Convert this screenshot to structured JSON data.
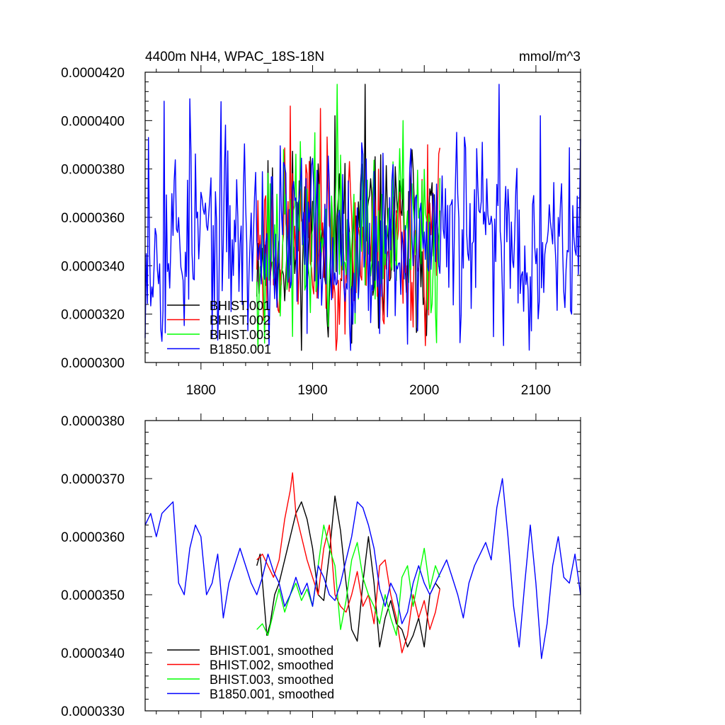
{
  "chart_data": [
    {
      "type": "line",
      "title": "4400m NH4, WPAC_18S-18N",
      "units": "mmol/m^3",
      "xlim": [
        1750,
        2140
      ],
      "ylim": [
        3e-05,
        4.2e-05
      ],
      "xticks": [
        1800,
        1900,
        2000,
        2100
      ],
      "yticks": [
        3e-05,
        3.2e-05,
        3.4e-05,
        3.6e-05,
        3.8e-05,
        4e-05,
        4.2e-05
      ],
      "ytick_labels": [
        "0.0000300",
        "0.0000320",
        "0.0000340",
        "0.0000360",
        "0.0000380",
        "0.0000400",
        "0.0000420"
      ],
      "xtick_labels": [
        "1800",
        "1900",
        "2000",
        "2100"
      ],
      "legend_position": "bottom-left",
      "series": [
        {
          "name": "BHIST.001",
          "color": "#000000",
          "x_start": 1850,
          "x_end": 2014,
          "mean": 3.5e-05,
          "amplitude": 1.8e-06,
          "seed": 11,
          "peaks": [
            [
              1947,
              4.15e-05
            ],
            [
              1920,
              4.02e-05
            ],
            [
              1935,
              3.08e-05
            ],
            [
              1898,
              3.85e-05
            ],
            [
              1990,
              3.8e-05
            ]
          ]
        },
        {
          "name": "BHIST.002",
          "color": "#ff0000",
          "x_start": 1850,
          "x_end": 2014,
          "mean": 3.5e-05,
          "amplitude": 1.8e-06,
          "seed": 23,
          "peaks": [
            [
              1880,
              4.06e-05
            ],
            [
              1907,
              4.05e-05
            ],
            [
              1960,
              3.14e-05
            ],
            [
              2003,
              3.9e-05
            ]
          ]
        },
        {
          "name": "BHIST.003",
          "color": "#00ff00",
          "x_start": 1850,
          "x_end": 2014,
          "mean": 3.5e-05,
          "amplitude": 1.8e-06,
          "seed": 37,
          "peaks": [
            [
              1922,
              4.15e-05
            ],
            [
              1981,
              4e-05
            ],
            [
              1857,
              3.08e-05
            ],
            [
              1902,
              3.95e-05
            ]
          ]
        },
        {
          "name": "B1850.001",
          "color": "#0000ff",
          "x_start": 1750,
          "x_end": 2140,
          "mean": 3.52e-05,
          "amplitude": 2e-06,
          "seed": 53,
          "peaks": [
            [
              1767,
              4.08e-05
            ],
            [
              1790,
              4.09e-05
            ],
            [
              2067,
              4.15e-05
            ],
            [
              2104,
              4.02e-05
            ],
            [
              1753,
              3.93e-05
            ],
            [
              1812,
              3.22e-05
            ],
            [
              1895,
              3.12e-05
            ],
            [
              2132,
              3.2e-05
            ]
          ]
        }
      ]
    },
    {
      "type": "line",
      "title": "",
      "units": "",
      "xlim": [
        1750,
        2140
      ],
      "ylim": [
        3.3e-05,
        3.8e-05
      ],
      "xticks": [
        1800,
        1900,
        2000,
        2100
      ],
      "yticks": [
        3.3e-05,
        3.4e-05,
        3.5e-05,
        3.6e-05,
        3.7e-05,
        3.8e-05
      ],
      "ytick_labels": [
        "0.0000330",
        "0.0000340",
        "0.0000350",
        "0.0000360",
        "0.0000370",
        "0.0000380"
      ],
      "xtick_labels": [],
      "legend_position": "bottom-left",
      "series": [
        {
          "name": "BHIST.001, smoothed",
          "color": "#000000",
          "x": [
            1850,
            1853,
            1856,
            1859,
            1862,
            1866,
            1870,
            1875,
            1880,
            1885,
            1890,
            1895,
            1900,
            1905,
            1910,
            1915,
            1920,
            1925,
            1930,
            1935,
            1940,
            1945,
            1950,
            1955,
            1960,
            1965,
            1970,
            1975,
            1980,
            1985,
            1990,
            1995,
            2000,
            2005,
            2010,
            2014
          ],
          "y": [
            3.55e-05,
            3.57e-05,
            3.5e-05,
            3.43e-05,
            3.45e-05,
            3.5e-05,
            3.52e-05,
            3.56e-05,
            3.6e-05,
            3.64e-05,
            3.66e-05,
            3.63e-05,
            3.58e-05,
            3.5e-05,
            3.49e-05,
            3.57e-05,
            3.67e-05,
            3.61e-05,
            3.52e-05,
            3.44e-05,
            3.42e-05,
            3.52e-05,
            3.6e-05,
            3.52e-05,
            3.41e-05,
            3.46e-05,
            3.49e-05,
            3.45e-05,
            3.44e-05,
            3.41e-05,
            3.43e-05,
            3.46e-05,
            3.41e-05,
            3.5e-05,
            3.52e-05,
            3.51e-05
          ]
        },
        {
          "name": "BHIST.002, smoothed",
          "color": "#ff0000",
          "x": [
            1850,
            1855,
            1860,
            1865,
            1870,
            1875,
            1880,
            1882,
            1885,
            1890,
            1895,
            1900,
            1905,
            1910,
            1915,
            1920,
            1925,
            1930,
            1935,
            1940,
            1945,
            1950,
            1955,
            1960,
            1965,
            1970,
            1975,
            1980,
            1985,
            1990,
            1995,
            2000,
            2005,
            2010,
            2014
          ],
          "y": [
            3.56e-05,
            3.57e-05,
            3.55e-05,
            3.53e-05,
            3.56e-05,
            3.63e-05,
            3.68e-05,
            3.71e-05,
            3.64e-05,
            3.6e-05,
            3.56e-05,
            3.53e-05,
            3.5e-05,
            3.58e-05,
            3.62e-05,
            3.5e-05,
            3.48e-05,
            3.47e-05,
            3.5e-05,
            3.54e-05,
            3.48e-05,
            3.5e-05,
            3.45e-05,
            3.55e-05,
            3.56e-05,
            3.5e-05,
            3.46e-05,
            3.4e-05,
            3.43e-05,
            3.5e-05,
            3.46e-05,
            3.49e-05,
            3.44e-05,
            3.47e-05,
            3.51e-05
          ]
        },
        {
          "name": "BHIST.003, smoothed",
          "color": "#00ff00",
          "x": [
            1850,
            1855,
            1860,
            1865,
            1870,
            1875,
            1880,
            1885,
            1890,
            1895,
            1900,
            1905,
            1910,
            1915,
            1920,
            1925,
            1930,
            1935,
            1940,
            1945,
            1950,
            1955,
            1960,
            1965,
            1970,
            1975,
            1980,
            1985,
            1990,
            1995,
            2000,
            2005,
            2010,
            2014
          ],
          "y": [
            3.44e-05,
            3.45e-05,
            3.43e-05,
            3.47e-05,
            3.51e-05,
            3.47e-05,
            3.5e-05,
            3.52e-05,
            3.49e-05,
            3.51e-05,
            3.48e-05,
            3.55e-05,
            3.62e-05,
            3.58e-05,
            3.55e-05,
            3.44e-05,
            3.49e-05,
            3.56e-05,
            3.59e-05,
            3.53e-05,
            3.5e-05,
            3.48e-05,
            3.45e-05,
            3.5e-05,
            3.46e-05,
            3.43e-05,
            3.53e-05,
            3.55e-05,
            3.48e-05,
            3.53e-05,
            3.58e-05,
            3.51e-05,
            3.55e-05,
            3.53e-05
          ]
        },
        {
          "name": "B1850.001, smoothed",
          "color": "#0000ff",
          "x": [
            1750,
            1755,
            1760,
            1765,
            1770,
            1775,
            1780,
            1785,
            1790,
            1795,
            1800,
            1805,
            1810,
            1815,
            1820,
            1825,
            1830,
            1835,
            1840,
            1845,
            1850,
            1855,
            1860,
            1865,
            1870,
            1875,
            1880,
            1885,
            1890,
            1895,
            1900,
            1905,
            1910,
            1915,
            1920,
            1925,
            1930,
            1935,
            1940,
            1945,
            1950,
            1955,
            1960,
            1965,
            1970,
            1975,
            1980,
            1985,
            1990,
            1995,
            2000,
            2005,
            2010,
            2015,
            2020,
            2025,
            2030,
            2035,
            2040,
            2045,
            2050,
            2055,
            2060,
            2065,
            2070,
            2075,
            2080,
            2085,
            2090,
            2095,
            2100,
            2105,
            2110,
            2115,
            2120,
            2125,
            2130,
            2135,
            2140
          ],
          "y": [
            3.62e-05,
            3.64e-05,
            3.6e-05,
            3.64e-05,
            3.65e-05,
            3.66e-05,
            3.52e-05,
            3.5e-05,
            3.58e-05,
            3.62e-05,
            3.6e-05,
            3.5e-05,
            3.52e-05,
            3.57e-05,
            3.46e-05,
            3.52e-05,
            3.55e-05,
            3.58e-05,
            3.55e-05,
            3.52e-05,
            3.5e-05,
            3.53e-05,
            3.57e-05,
            3.54e-05,
            3.52e-05,
            3.48e-05,
            3.5e-05,
            3.53e-05,
            3.5e-05,
            3.52e-05,
            3.48e-05,
            3.55e-05,
            3.53e-05,
            3.5e-05,
            3.49e-05,
            3.52e-05,
            3.56e-05,
            3.6e-05,
            3.66e-05,
            3.65e-05,
            3.62e-05,
            3.58e-05,
            3.51e-05,
            3.48e-05,
            3.52e-05,
            3.5e-05,
            3.45e-05,
            3.47e-05,
            3.52e-05,
            3.55e-05,
            3.52e-05,
            3.5e-05,
            3.52e-05,
            3.54e-05,
            3.56e-05,
            3.53e-05,
            3.5e-05,
            3.46e-05,
            3.52e-05,
            3.55e-05,
            3.57e-05,
            3.59e-05,
            3.56e-05,
            3.65e-05,
            3.7e-05,
            3.6e-05,
            3.48e-05,
            3.41e-05,
            3.52e-05,
            3.62e-05,
            3.52e-05,
            3.39e-05,
            3.45e-05,
            3.55e-05,
            3.6e-05,
            3.53e-05,
            3.52e-05,
            3.57e-05,
            3.5e-05
          ]
        }
      ]
    }
  ]
}
